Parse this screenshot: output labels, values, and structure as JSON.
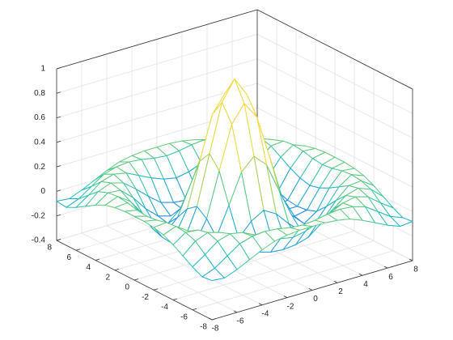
{
  "chart_data": {
    "type": "surface",
    "x": [
      -8,
      -7,
      -6,
      -5,
      -4,
      -3,
      -2,
      -1,
      0,
      1,
      2,
      3,
      4,
      5,
      6,
      7,
      8
    ],
    "y": [
      -8,
      -7,
      -6,
      -5,
      -4,
      -3,
      -2,
      -1,
      0,
      1,
      2,
      3,
      4,
      5,
      6,
      7,
      8
    ],
    "z": [
      [
        -0.08,
        -0.09,
        -0.05,
        0,
        0.05,
        0.09,
        0.11,
        0.12,
        0.12,
        0.12,
        0.11,
        0.09,
        0.05,
        0,
        -0.05,
        -0.09,
        -0.08
      ],
      [
        -0.09,
        -0.05,
        0.02,
        0.09,
        0.12,
        0.13,
        0.12,
        0.1,
        0.09,
        0.1,
        0.12,
        0.13,
        0.12,
        0.09,
        0.02,
        -0.05,
        -0.09
      ],
      [
        -0.05,
        0.02,
        0.1,
        0.13,
        0.11,
        0.06,
        0.01,
        -0.03,
        -0.05,
        -0.03,
        0.01,
        0.06,
        0.11,
        0.13,
        0.1,
        0.02,
        -0.05
      ],
      [
        0,
        0.09,
        0.13,
        0.1,
        0.02,
        -0.07,
        -0.15,
        -0.18,
        -0.19,
        -0.18,
        -0.15,
        -0.07,
        0.02,
        0.1,
        0.13,
        0.09,
        0
      ],
      [
        0.05,
        0.12,
        0.11,
        0.02,
        -0.1,
        -0.19,
        -0.22,
        -0.2,
        -0.19,
        -0.2,
        -0.22,
        -0.19,
        -0.1,
        0.02,
        0.11,
        0.12,
        0.05
      ],
      [
        0.09,
        0.13,
        0.06,
        -0.07,
        -0.19,
        -0.21,
        -0.12,
        -0.01,
        0.05,
        -0.01,
        -0.12,
        -0.21,
        -0.19,
        -0.07,
        0.06,
        0.13,
        0.09
      ],
      [
        0.11,
        0.12,
        0.01,
        -0.15,
        -0.22,
        -0.12,
        0.11,
        0.35,
        0.45,
        0.35,
        0.11,
        -0.12,
        -0.22,
        -0.15,
        0.01,
        0.12,
        0.11
      ],
      [
        0.12,
        0.1,
        -0.03,
        -0.18,
        -0.2,
        -0.01,
        0.35,
        0.7,
        0.84,
        0.7,
        0.35,
        -0.01,
        -0.2,
        -0.18,
        -0.03,
        0.1,
        0.12
      ],
      [
        0.12,
        0.09,
        -0.05,
        -0.19,
        -0.19,
        0.05,
        0.45,
        0.84,
        1,
        0.84,
        0.45,
        0.05,
        -0.19,
        -0.19,
        -0.05,
        0.09,
        0.12
      ],
      [
        0.12,
        0.1,
        -0.03,
        -0.18,
        -0.2,
        -0.01,
        0.35,
        0.7,
        0.84,
        0.7,
        0.35,
        -0.01,
        -0.2,
        -0.18,
        -0.03,
        0.1,
        0.12
      ],
      [
        0.11,
        0.12,
        0.01,
        -0.15,
        -0.22,
        -0.12,
        0.11,
        0.35,
        0.45,
        0.35,
        0.11,
        -0.12,
        -0.22,
        -0.15,
        0.01,
        0.12,
        0.11
      ],
      [
        0.09,
        0.13,
        0.06,
        -0.07,
        -0.19,
        -0.21,
        -0.12,
        -0.01,
        0.05,
        -0.01,
        -0.12,
        -0.21,
        -0.19,
        -0.07,
        0.06,
        0.13,
        0.09
      ],
      [
        0.05,
        0.12,
        0.11,
        0.02,
        -0.1,
        -0.19,
        -0.22,
        -0.2,
        -0.19,
        -0.2,
        -0.22,
        -0.19,
        -0.1,
        0.02,
        0.11,
        0.12,
        0.05
      ],
      [
        0,
        0.09,
        0.13,
        0.1,
        0.02,
        -0.07,
        -0.15,
        -0.18,
        -0.19,
        -0.18,
        -0.15,
        -0.07,
        0.02,
        0.1,
        0.13,
        0.09,
        0
      ],
      [
        -0.05,
        0.02,
        0.1,
        0.13,
        0.11,
        0.06,
        0.01,
        -0.03,
        -0.05,
        -0.03,
        0.01,
        0.06,
        0.11,
        0.13,
        0.1,
        0.02,
        -0.05
      ],
      [
        -0.09,
        -0.05,
        0.02,
        0.09,
        0.12,
        0.13,
        0.12,
        0.1,
        0.09,
        0.1,
        0.12,
        0.13,
        0.12,
        0.09,
        0.02,
        -0.05,
        -0.09
      ],
      [
        -0.08,
        -0.09,
        -0.05,
        0,
        0.05,
        0.09,
        0.11,
        0.12,
        0.12,
        0.12,
        0.11,
        0.09,
        0.05,
        0,
        -0.05,
        -0.09,
        -0.08
      ]
    ],
    "xlim": [
      -8,
      8
    ],
    "ylim": [
      -8,
      8
    ],
    "zlim": [
      -0.4,
      1
    ],
    "xticks": [
      -8,
      -6,
      -4,
      -2,
      0,
      2,
      4,
      6,
      8
    ],
    "yticks": [
      -8,
      -6,
      -4,
      -2,
      0,
      2,
      4,
      6,
      8
    ],
    "zticks": [
      -0.4,
      -0.2,
      0,
      0.2,
      0.4,
      0.6,
      0.8,
      1
    ],
    "grid": true,
    "colormap": [
      "#3e4fe0",
      "#1f8fe8",
      "#1cbfc0",
      "#6fcc6a",
      "#f0d83a"
    ]
  }
}
